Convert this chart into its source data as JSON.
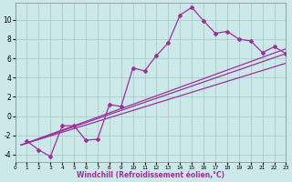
{
  "background_color": "#cde8e8",
  "grid_color": "#aacccc",
  "line_color": "#993399",
  "xlabel": "Windchill (Refroidissement éolien,°C)",
  "xlim": [
    0,
    23
  ],
  "ylim": [
    -4.8,
    11.8
  ],
  "xticks": [
    0,
    1,
    2,
    3,
    4,
    5,
    6,
    7,
    8,
    9,
    10,
    11,
    12,
    13,
    14,
    15,
    16,
    17,
    18,
    19,
    20,
    21,
    22,
    23
  ],
  "yticks": [
    -4,
    -2,
    0,
    2,
    4,
    6,
    8,
    10
  ],
  "main_x": [
    1,
    2,
    3,
    4,
    5,
    6,
    7,
    8,
    9,
    10,
    11,
    12,
    13,
    14,
    15,
    16,
    17,
    18,
    19,
    20,
    21,
    22,
    23
  ],
  "main_y": [
    -2.6,
    -3.5,
    -4.2,
    -1.0,
    -1.0,
    -2.5,
    -2.4,
    1.2,
    1.0,
    5.0,
    4.7,
    6.3,
    7.6,
    10.5,
    11.3,
    9.9,
    8.6,
    8.8,
    8.0,
    7.8,
    6.6,
    7.2,
    6.5
  ],
  "trend_lines": [
    {
      "x": [
        0.5,
        23
      ],
      "y": [
        -3.0,
        6.5
      ]
    },
    {
      "x": [
        0.5,
        23
      ],
      "y": [
        -3.0,
        5.5
      ]
    },
    {
      "x": [
        0.5,
        23
      ],
      "y": [
        -3.0,
        7.0
      ]
    }
  ]
}
